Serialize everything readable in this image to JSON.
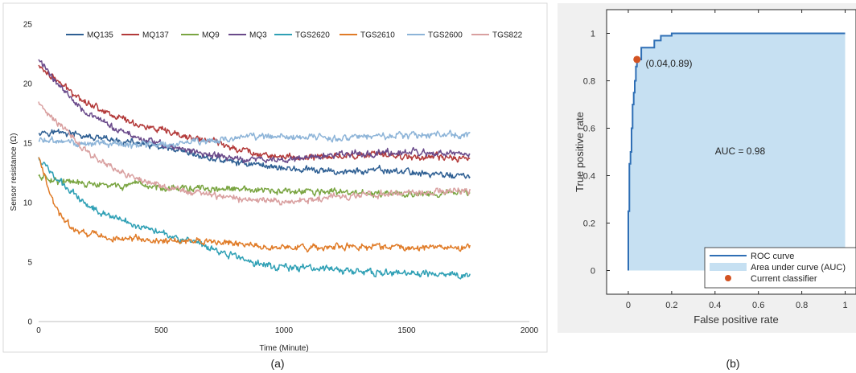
{
  "panel_labels": [
    "(a)",
    "(b)"
  ],
  "chart_data": [
    {
      "type": "line",
      "xlabel": "Time (Minute)",
      "ylabel": "Sensor resistance (Ω)",
      "xlim": [
        0,
        2000
      ],
      "ylim": [
        0,
        25
      ],
      "xticks": [
        0,
        500,
        1000,
        1500,
        2000
      ],
      "yticks": [
        0,
        5,
        10,
        15,
        20,
        25
      ],
      "grid": false,
      "legend": "top",
      "series": [
        {
          "name": "MQ135",
          "color": "#2e5f93",
          "x": [
            0,
            100,
            200,
            300,
            400,
            500,
            600,
            700,
            800,
            900,
            1000,
            1100,
            1200,
            1300,
            1400,
            1500,
            1600,
            1760
          ],
          "y": [
            16.0,
            15.9,
            15.5,
            15.2,
            15.0,
            14.6,
            14.1,
            13.7,
            13.4,
            13.2,
            12.9,
            12.7,
            12.6,
            12.6,
            12.7,
            12.6,
            12.4,
            12.2
          ]
        },
        {
          "name": "MQ137",
          "color": "#b33a3a",
          "x": [
            0,
            100,
            200,
            300,
            400,
            500,
            600,
            700,
            800,
            900,
            1000,
            1100,
            1200,
            1300,
            1400,
            1500,
            1600,
            1760
          ],
          "y": [
            21.5,
            19.8,
            18.4,
            17.4,
            16.6,
            16.0,
            15.5,
            15.2,
            14.6,
            14.1,
            13.8,
            13.8,
            13.9,
            14.0,
            14.0,
            13.9,
            13.8,
            13.7
          ]
        },
        {
          "name": "MQ9",
          "color": "#7aa542",
          "x": [
            0,
            100,
            200,
            300,
            400,
            500,
            600,
            700,
            800,
            900,
            1000,
            1100,
            1200,
            1300,
            1400,
            1500,
            1600,
            1760
          ],
          "y": [
            12.2,
            11.8,
            11.5,
            11.4,
            11.4,
            11.3,
            11.2,
            11.1,
            11.1,
            11.0,
            10.9,
            10.9,
            10.9,
            10.8,
            10.7,
            10.7,
            10.8,
            10.8
          ]
        },
        {
          "name": "MQ3",
          "color": "#6a4a8a",
          "x": [
            0,
            100,
            200,
            300,
            400,
            500,
            600,
            700,
            800,
            900,
            1000,
            1100,
            1200,
            1300,
            1400,
            1500,
            1600,
            1760
          ],
          "y": [
            22.0,
            19.5,
            17.5,
            16.3,
            15.5,
            14.9,
            14.4,
            14.0,
            13.7,
            13.6,
            13.6,
            13.8,
            14.0,
            14.1,
            14.2,
            14.2,
            14.1,
            14.0
          ]
        },
        {
          "name": "TGS2620",
          "color": "#2fa0b5",
          "x": [
            0,
            50,
            100,
            200,
            300,
            400,
            500,
            600,
            700,
            800,
            900,
            1000,
            1100,
            1200,
            1300,
            1400,
            1500,
            1600,
            1760
          ],
          "y": [
            13.8,
            12.5,
            11.5,
            9.8,
            8.8,
            8.1,
            7.6,
            6.8,
            6.1,
            5.5,
            4.8,
            4.6,
            4.5,
            4.4,
            4.2,
            4.1,
            4.0,
            4.0,
            3.9
          ]
        },
        {
          "name": "TGS2610",
          "color": "#e07b27",
          "x": [
            0,
            50,
            100,
            150,
            200,
            300,
            400,
            500,
            600,
            700,
            800,
            900,
            1000,
            1100,
            1200,
            1300,
            1400,
            1500,
            1600,
            1760
          ],
          "y": [
            13.8,
            10.5,
            8.5,
            7.7,
            7.4,
            7.0,
            6.9,
            6.8,
            6.7,
            6.7,
            6.6,
            6.3,
            6.2,
            6.2,
            6.3,
            6.3,
            6.3,
            6.2,
            6.2,
            6.2
          ]
        },
        {
          "name": "TGS2600",
          "color": "#8db4d8",
          "x": [
            0,
            100,
            200,
            300,
            400,
            500,
            600,
            700,
            800,
            900,
            1000,
            1100,
            1200,
            1300,
            1400,
            1500,
            1600,
            1760
          ],
          "y": [
            15.2,
            15.1,
            15.0,
            14.9,
            14.8,
            14.9,
            15.0,
            15.2,
            15.4,
            15.5,
            15.5,
            15.5,
            15.4,
            15.5,
            15.6,
            15.6,
            15.7,
            15.7
          ]
        },
        {
          "name": "TGS822",
          "color": "#d9a0a0",
          "x": [
            0,
            100,
            200,
            300,
            400,
            500,
            600,
            700,
            800,
            900,
            1000,
            1100,
            1200,
            1300,
            1400,
            1500,
            1600,
            1760
          ],
          "y": [
            18.5,
            16.3,
            14.2,
            13.0,
            12.0,
            11.4,
            10.9,
            10.6,
            10.4,
            10.2,
            10.1,
            10.3,
            10.5,
            10.6,
            10.7,
            10.8,
            10.9,
            11.0
          ]
        }
      ]
    },
    {
      "type": "area",
      "xlabel": "False positive rate",
      "ylabel": "True positive rate",
      "xlim": [
        -0.1,
        1.05
      ],
      "ylim": [
        -0.1,
        1.1
      ],
      "xticks": [
        0,
        0.2,
        0.4,
        0.6,
        0.8,
        1
      ],
      "yticks": [
        0,
        0.2,
        0.4,
        0.6,
        0.8,
        1
      ],
      "grid": false,
      "legend": "bottom-right",
      "line_color": "#2f6fb5",
      "area_color": "#c6e0f2",
      "marker_color": "#d35322",
      "series": [
        {
          "name": "ROC curve",
          "x": [
            0,
            0,
            0.005,
            0.005,
            0.01,
            0.01,
            0.015,
            0.015,
            0.02,
            0.02,
            0.025,
            0.025,
            0.03,
            0.03,
            0.035,
            0.035,
            0.04,
            0.04,
            0.06,
            0.06,
            0.12,
            0.12,
            0.15,
            0.15,
            0.2,
            0.2,
            1
          ],
          "y": [
            0,
            0.25,
            0.25,
            0.45,
            0.45,
            0.5,
            0.5,
            0.6,
            0.6,
            0.7,
            0.7,
            0.75,
            0.75,
            0.8,
            0.8,
            0.86,
            0.86,
            0.89,
            0.89,
            0.94,
            0.94,
            0.97,
            0.97,
            0.99,
            0.99,
            1.0,
            1.0
          ]
        },
        {
          "name": "Area under curve (AUC)"
        },
        {
          "name": "Current classifier",
          "x": [
            0.04
          ],
          "y": [
            0.89
          ]
        }
      ],
      "annotations": [
        {
          "text": "(0.04,0.89)",
          "x": 0.08,
          "y": 0.86
        },
        {
          "text": "AUC = 0.98",
          "x": 0.4,
          "y": 0.49
        }
      ]
    }
  ]
}
